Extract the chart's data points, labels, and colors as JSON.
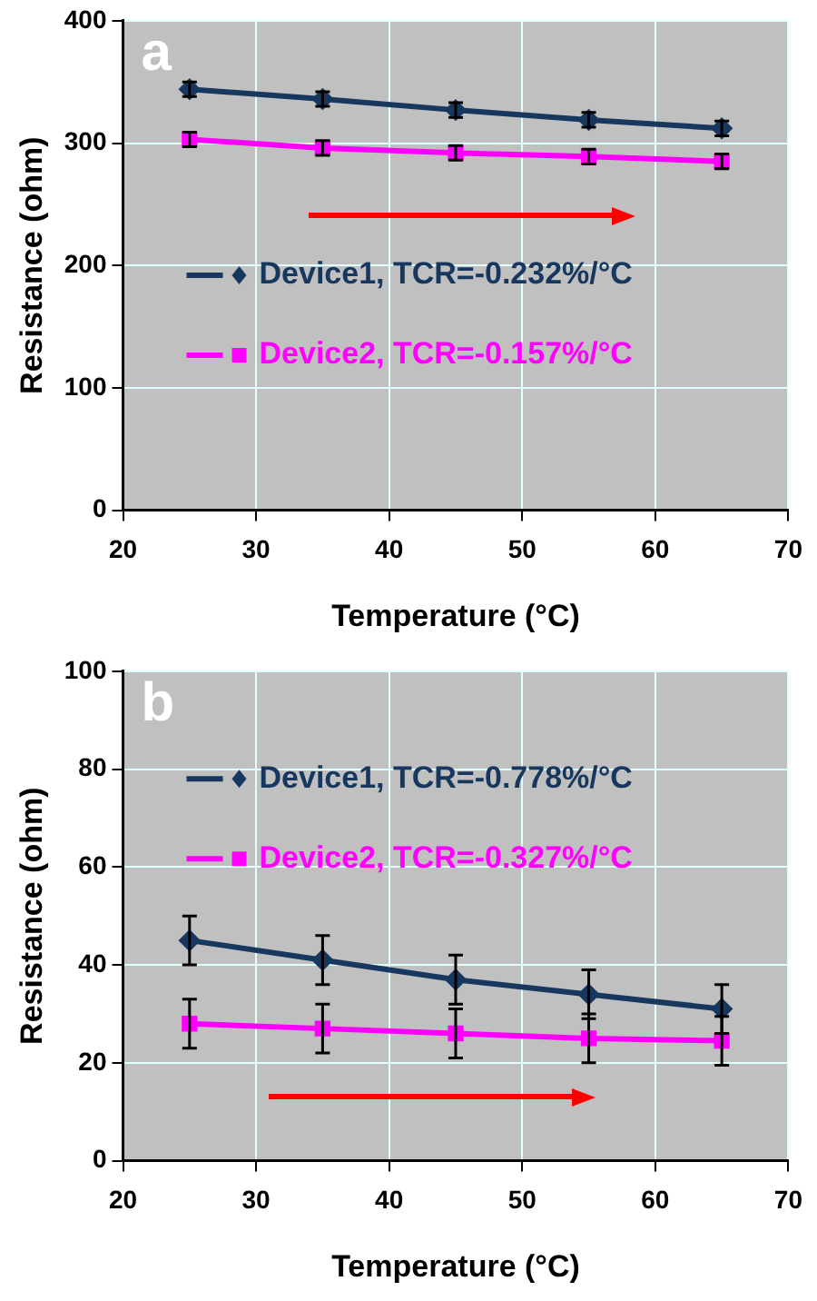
{
  "chart_data": [
    {
      "type": "line",
      "xlabel": "Temperature (°C)",
      "ylabel": "Resistance (ohm)",
      "annotations": [
        "a"
      ],
      "x": [
        25,
        35,
        45,
        55,
        65
      ],
      "xlim": [
        20,
        70
      ],
      "xticks": [
        20,
        30,
        40,
        50,
        60,
        70
      ],
      "ylim": [
        0,
        400
      ],
      "yticks": [
        0,
        100,
        200,
        300,
        400
      ],
      "grid": true,
      "legend": "right",
      "line_style": "solid",
      "series": [
        {
          "name": "Device1, TCR=-0.232%/°C",
          "color": "#17375e",
          "marker": "diamond",
          "values": [
            344,
            336,
            327,
            319,
            312
          ],
          "errors": [
            6,
            6,
            6,
            6,
            6
          ]
        },
        {
          "name": "Device2, TCR=-0.157%/°C",
          "color": "#ff00ff",
          "marker": "square",
          "values": [
            303,
            296,
            292,
            289,
            285
          ],
          "errors": [
            6,
            6,
            6,
            6,
            6
          ]
        }
      ]
    },
    {
      "type": "line",
      "xlabel": "Temperature (°C)",
      "ylabel": "Resistance (ohm)",
      "annotations": [
        "b"
      ],
      "x": [
        25,
        35,
        45,
        55,
        65
      ],
      "xlim": [
        20,
        70
      ],
      "xticks": [
        20,
        30,
        40,
        50,
        60,
        70
      ],
      "ylim": [
        0,
        100
      ],
      "yticks": [
        0,
        20,
        40,
        60,
        80,
        100
      ],
      "grid": true,
      "legend": "top right",
      "line_style": "solid",
      "series": [
        {
          "name": "Device1, TCR=-0.778%/°C",
          "color": "#17375e",
          "marker": "diamond",
          "values": [
            45,
            41,
            37,
            34,
            31
          ],
          "errors": [
            5,
            5,
            5,
            5,
            5
          ]
        },
        {
          "name": "Device2, TCR=-0.327%/°C",
          "color": "#ff00ff",
          "marker": "square",
          "values": [
            28,
            27,
            26,
            25,
            24.5
          ],
          "errors": [
            5,
            5,
            5,
            5,
            5
          ]
        }
      ]
    }
  ]
}
